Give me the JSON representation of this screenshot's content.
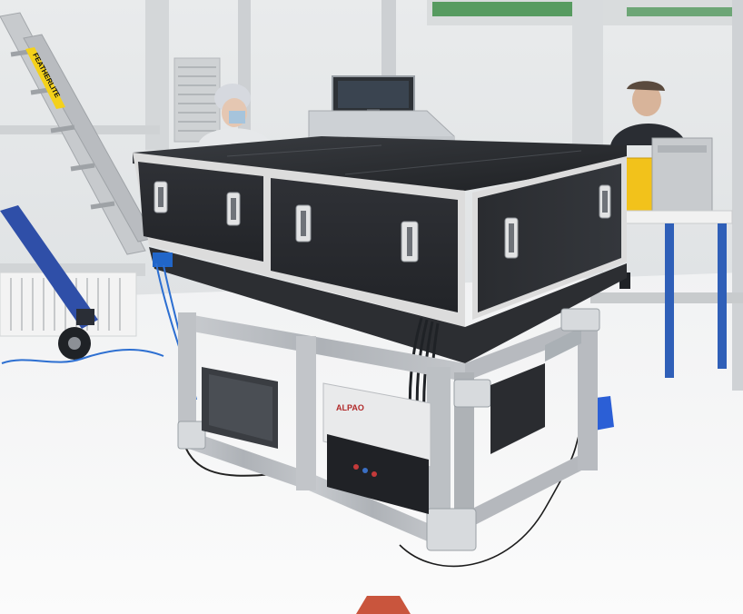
{
  "photo": {
    "ladder_label": "FEATHERLITE",
    "panel_brand": "ALPAO"
  },
  "colors": {
    "floor": "#eceef0",
    "wall": "#e7e9ea",
    "enclosure_panel": "#2b2d31",
    "enclosure_trim": "#dcdcdc",
    "frame": "#b9bcc0",
    "ladder_blue": "#2f4fa8",
    "yellow_case": "#f2c21b",
    "green_band": "#3f8f4a"
  }
}
